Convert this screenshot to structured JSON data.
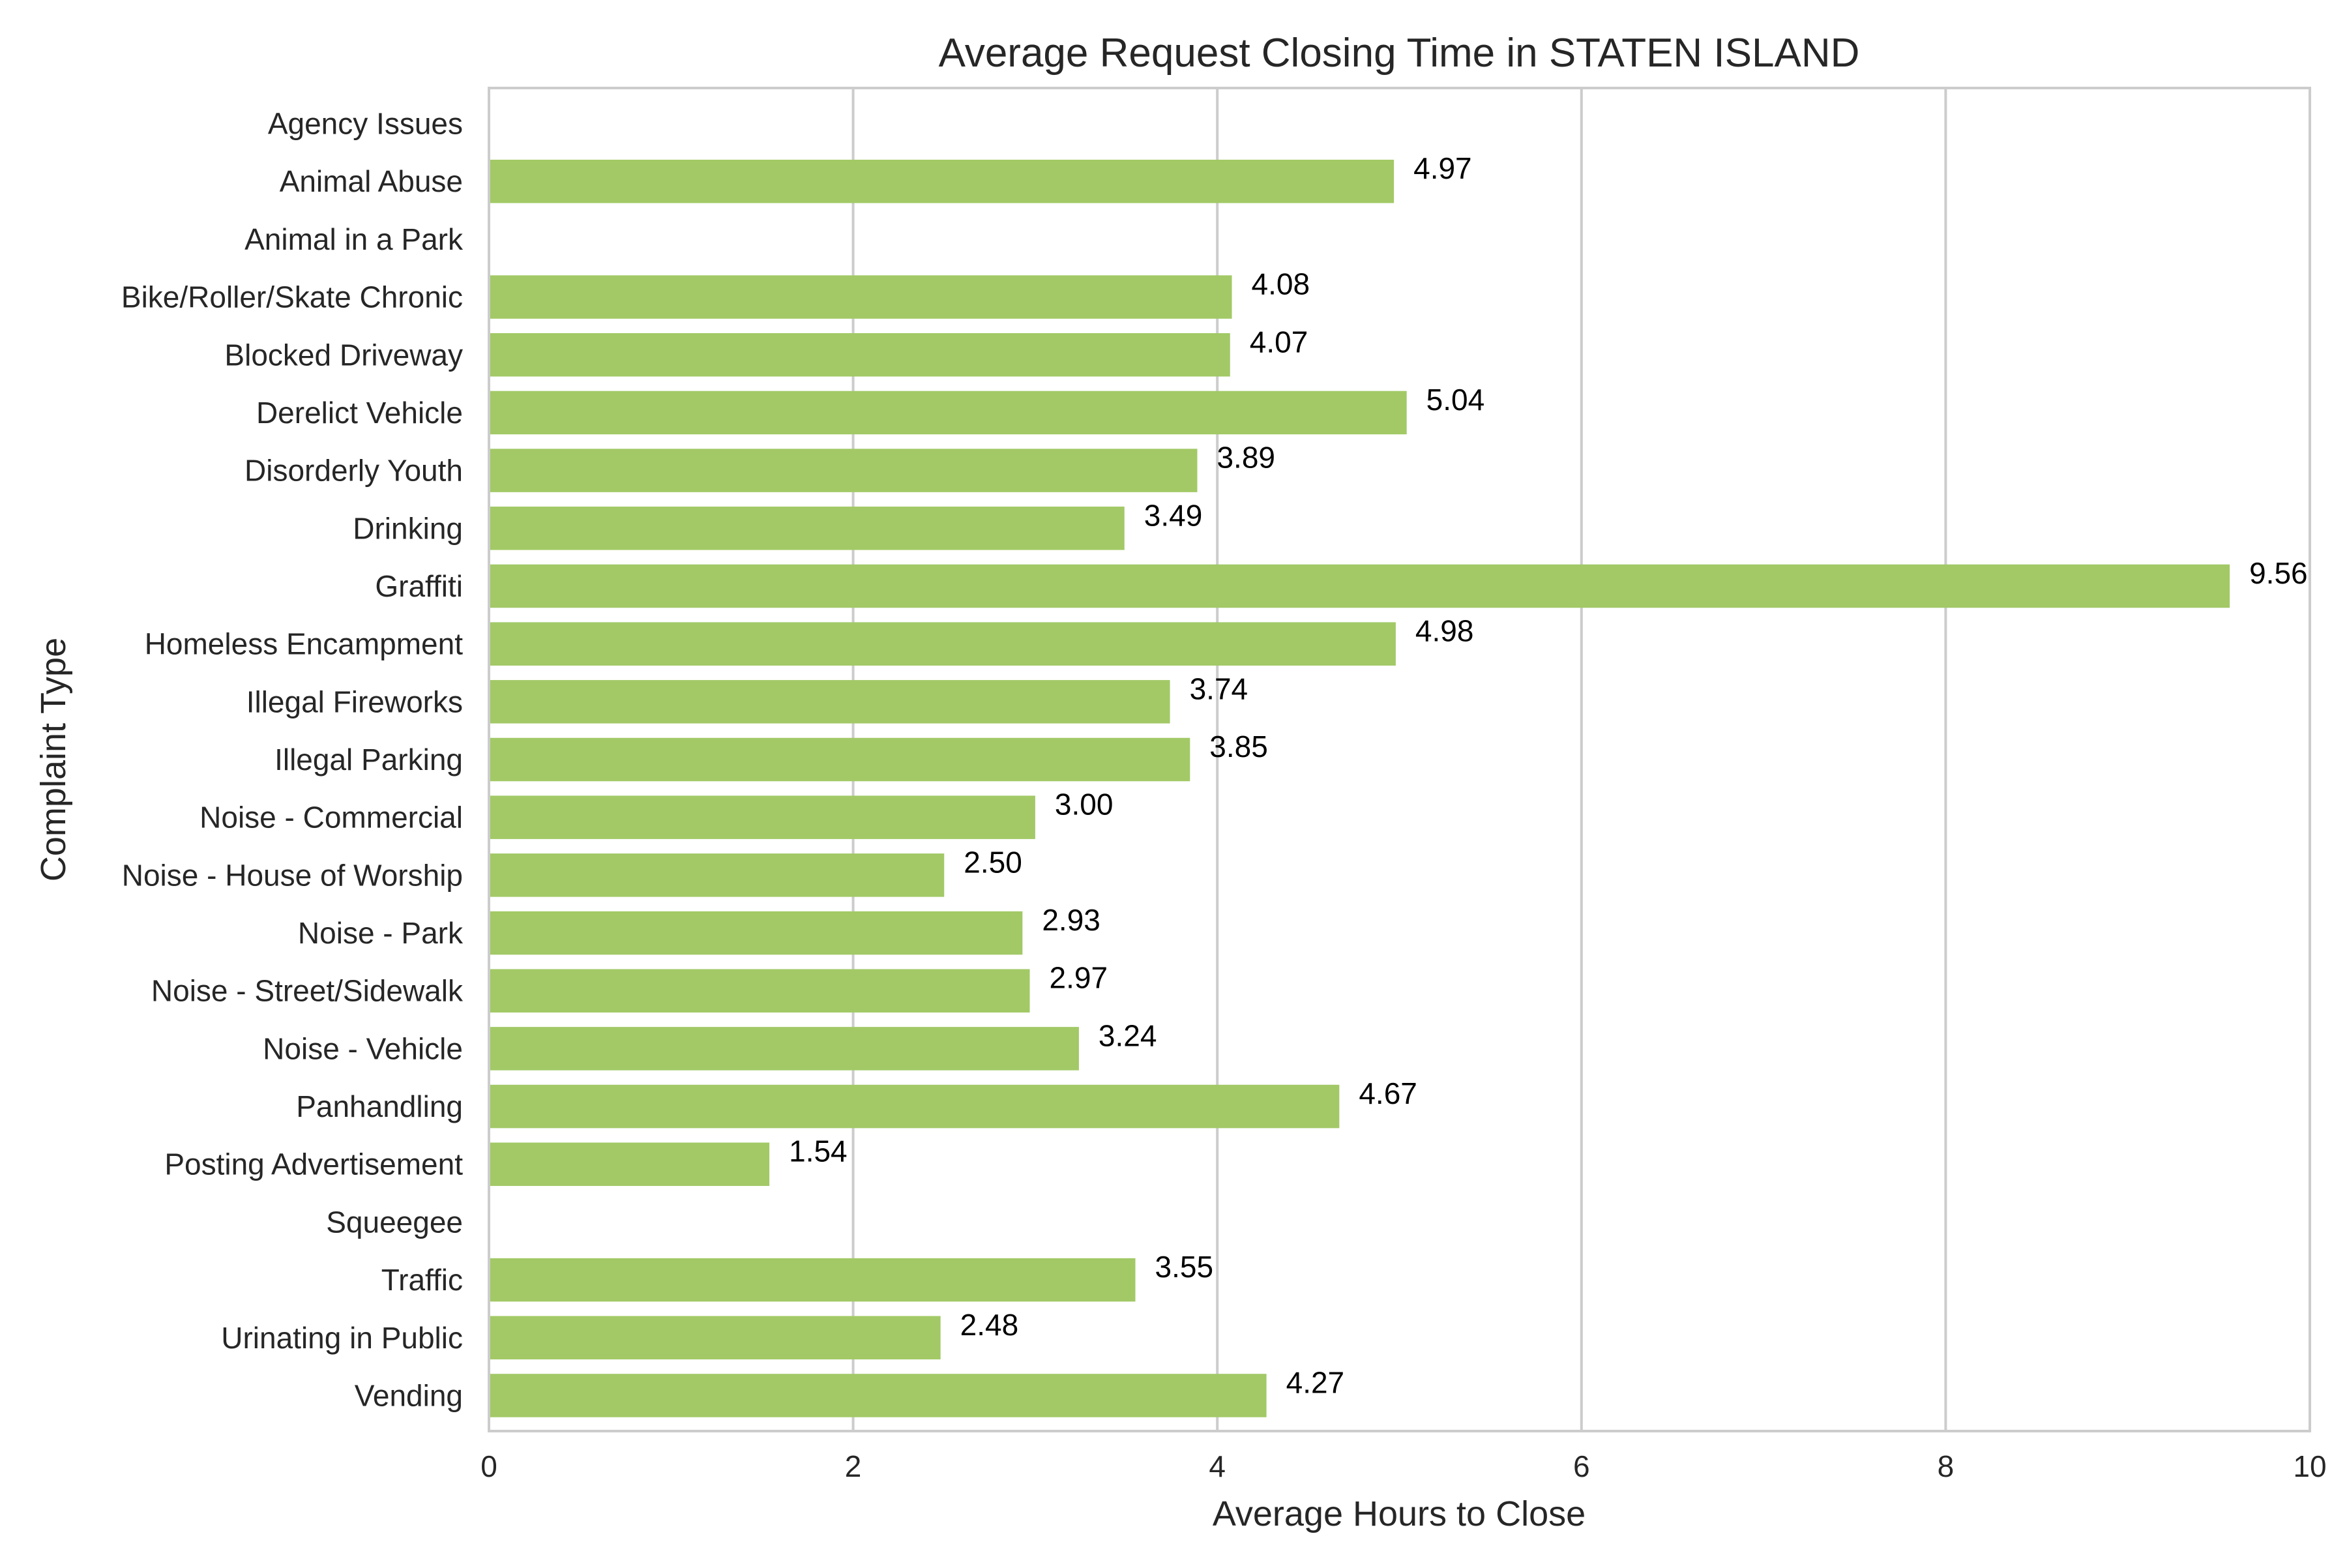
{
  "chart_data": {
    "type": "bar",
    "orientation": "horizontal",
    "title": "Average Request Closing Time in STATEN ISLAND",
    "xlabel": "Average Hours to Close",
    "ylabel": "Complaint Type",
    "xlim": [
      0,
      10
    ],
    "xticks": [
      0,
      2,
      4,
      6,
      8,
      10
    ],
    "grid": "vertical",
    "bar_color": "#a2c966",
    "categories": [
      "Agency Issues",
      "Animal Abuse",
      "Animal in a Park",
      "Bike/Roller/Skate Chronic",
      "Blocked Driveway",
      "Derelict Vehicle",
      "Disorderly Youth",
      "Drinking",
      "Graffiti",
      "Homeless Encampment",
      "Illegal Fireworks",
      "Illegal Parking",
      "Noise - Commercial",
      "Noise - House of Worship",
      "Noise - Park",
      "Noise - Street/Sidewalk",
      "Noise - Vehicle",
      "Panhandling",
      "Posting Advertisement",
      "Squeegee",
      "Traffic",
      "Urinating in Public",
      "Vending"
    ],
    "values": [
      null,
      4.97,
      null,
      4.08,
      4.07,
      5.04,
      3.89,
      3.49,
      9.56,
      4.98,
      3.74,
      3.85,
      3.0,
      2.5,
      2.93,
      2.97,
      3.24,
      4.67,
      1.54,
      null,
      3.55,
      2.48,
      4.27
    ],
    "value_labels": [
      "",
      "4.97",
      "",
      "4.08",
      "4.07",
      "5.04",
      "3.89",
      "3.49",
      "9.56",
      "4.98",
      "3.74",
      "3.85",
      "3.00",
      "2.50",
      "2.93",
      "2.97",
      "3.24",
      "4.67",
      "1.54",
      "",
      "3.55",
      "2.48",
      "4.27"
    ]
  }
}
